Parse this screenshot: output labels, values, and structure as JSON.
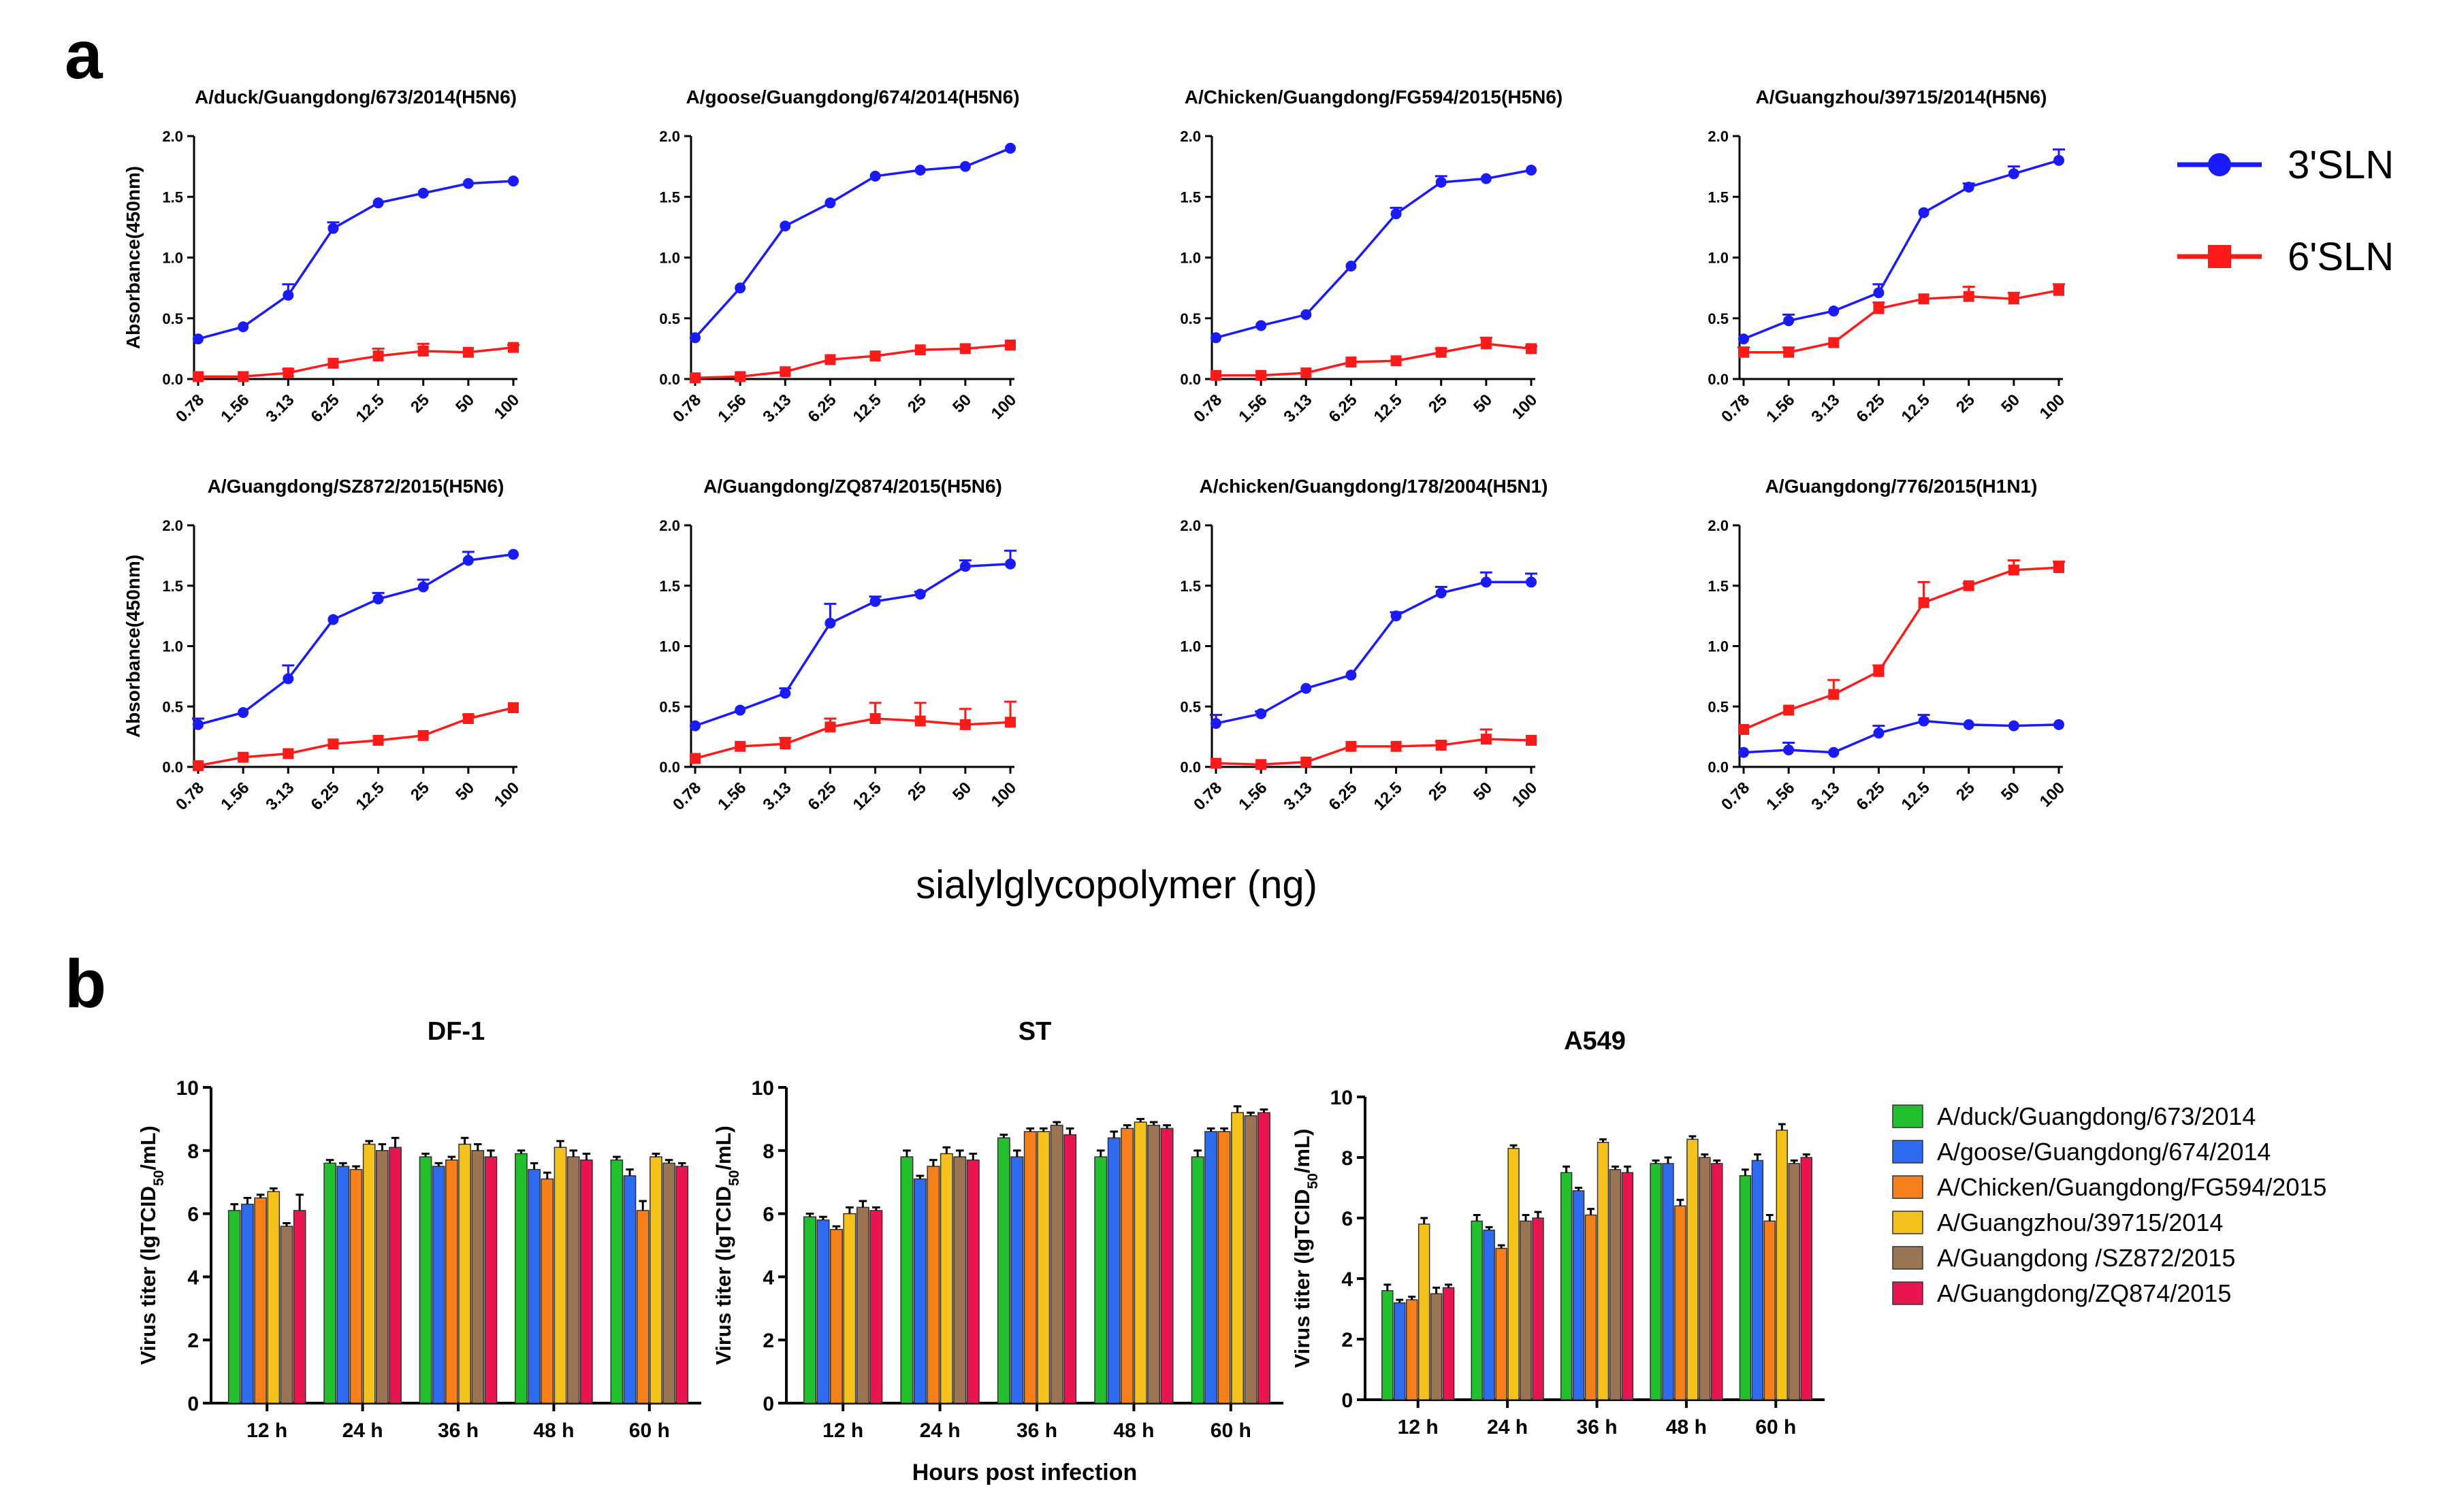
{
  "panel_a_label": "a",
  "panel_b_label": "b",
  "legend_a": [
    {
      "name": "3'SLN",
      "color": "#1a1aff"
    },
    {
      "name": "6'SLN",
      "color": "#ff1a1a"
    }
  ],
  "legend_b": [
    {
      "name": "A/duck/Guangdong/673/2014",
      "color": "#22c02c"
    },
    {
      "name": "A/goose/Guangdong/674/2014",
      "color": "#2d6cf0"
    },
    {
      "name": "A/Chicken/Guangdong/FG594/2015",
      "color": "#f57f18"
    },
    {
      "name": "A/Guangzhou/39715/2014",
      "color": "#f5c21b"
    },
    {
      "name": "A/Guangdong /SZ872/2015",
      "color": "#9b7553"
    },
    {
      "name": "A/Guangdong/ZQ874/2015",
      "color": "#e8154f"
    }
  ],
  "panel_a_xlabel": "sialylglycopolymer (ng)",
  "panel_b_xlabel": "Hours post infection",
  "chart_data": [
    {
      "type": "line",
      "title": "A/duck/Guangdong/673/2014(H5N6)",
      "ylabel": "Absorbance(450nm)",
      "categories": [
        "0.78",
        "1.56",
        "3.13",
        "6.25",
        "12.5",
        "25",
        "50",
        "100"
      ],
      "ylim": [
        0,
        2
      ],
      "yticks": [
        "0.0",
        "0.5",
        "1.0",
        "1.5",
        "2.0"
      ],
      "series": [
        {
          "name": "3'SLN",
          "values": [
            0.33,
            0.43,
            0.69,
            1.24,
            1.45,
            1.53,
            1.61,
            1.63
          ],
          "errors": [
            0.01,
            0.01,
            0.09,
            0.05,
            0.01,
            0.01,
            0.01,
            0.01
          ]
        },
        {
          "name": "6'SLN",
          "values": [
            0.02,
            0.02,
            0.05,
            0.13,
            0.19,
            0.23,
            0.22,
            0.26
          ],
          "errors": [
            0.01,
            0.01,
            0.03,
            0.01,
            0.06,
            0.06,
            0.01,
            0.02
          ]
        }
      ]
    },
    {
      "type": "line",
      "title": "A/goose/Guangdong/674/2014(H5N6)",
      "ylabel": "",
      "categories": [
        "0.78",
        "1.56",
        "3.13",
        "6.25",
        "12.5",
        "25",
        "50",
        "100"
      ],
      "ylim": [
        0,
        2
      ],
      "yticks": [
        "0.0",
        "0.5",
        "1.0",
        "1.5",
        "2.0"
      ],
      "series": [
        {
          "name": "3'SLN",
          "values": [
            0.34,
            0.75,
            1.26,
            1.45,
            1.67,
            1.72,
            1.75,
            1.9
          ],
          "errors": [
            0.01,
            0.01,
            0.01,
            0.01,
            0.01,
            0.01,
            0.01,
            0.01
          ]
        },
        {
          "name": "6'SLN",
          "values": [
            0.01,
            0.02,
            0.06,
            0.16,
            0.19,
            0.24,
            0.25,
            0.28
          ],
          "errors": [
            0.01,
            0.01,
            0.01,
            0.01,
            0.01,
            0.01,
            0.01,
            0.01
          ]
        }
      ]
    },
    {
      "type": "line",
      "title": "A/Chicken/Guangdong/FG594/2015(H5N6)",
      "ylabel": "",
      "categories": [
        "0.78",
        "1.56",
        "3.13",
        "6.25",
        "12.5",
        "25",
        "50",
        "100"
      ],
      "ylim": [
        0,
        2
      ],
      "yticks": [
        "0.0",
        "0.5",
        "1.0",
        "1.5",
        "2.0"
      ],
      "series": [
        {
          "name": "3'SLN",
          "values": [
            0.34,
            0.44,
            0.53,
            0.93,
            1.36,
            1.62,
            1.65,
            1.72
          ],
          "errors": [
            0.01,
            0.01,
            0.01,
            0.01,
            0.05,
            0.05,
            0.01,
            0.01
          ]
        },
        {
          "name": "6'SLN",
          "values": [
            0.03,
            0.03,
            0.05,
            0.14,
            0.15,
            0.22,
            0.29,
            0.25
          ],
          "errors": [
            0.01,
            0.01,
            0.01,
            0.01,
            0.01,
            0.03,
            0.05,
            0.02
          ]
        }
      ]
    },
    {
      "type": "line",
      "title": "A/Guangzhou/39715/2014(H5N6)",
      "ylabel": "",
      "categories": [
        "0.78",
        "1.56",
        "3.13",
        "6.25",
        "12.5",
        "25",
        "50",
        "100"
      ],
      "ylim": [
        0,
        2
      ],
      "yticks": [
        "0.0",
        "0.5",
        "1.0",
        "1.5",
        "2.0"
      ],
      "series": [
        {
          "name": "3'SLN",
          "values": [
            0.33,
            0.48,
            0.56,
            0.71,
            1.37,
            1.58,
            1.69,
            1.8
          ],
          "errors": [
            0.01,
            0.05,
            0.01,
            0.07,
            0.01,
            0.03,
            0.06,
            0.09
          ]
        },
        {
          "name": "6'SLN",
          "values": [
            0.22,
            0.22,
            0.3,
            0.58,
            0.66,
            0.68,
            0.66,
            0.73
          ],
          "errors": [
            0.04,
            0.04,
            0.01,
            0.05,
            0.01,
            0.08,
            0.05,
            0.05
          ]
        }
      ]
    },
    {
      "type": "line",
      "title": "A/Guangdong/SZ872/2015(H5N6)",
      "ylabel": "Absorbance(450nm)",
      "categories": [
        "0.78",
        "1.56",
        "3.13",
        "6.25",
        "12.5",
        "25",
        "50",
        "100"
      ],
      "ylim": [
        0,
        2
      ],
      "yticks": [
        "0.0",
        "0.5",
        "1.0",
        "1.5",
        "2.0"
      ],
      "series": [
        {
          "name": "3'SLN",
          "values": [
            0.35,
            0.45,
            0.73,
            1.22,
            1.39,
            1.49,
            1.71,
            1.76
          ],
          "errors": [
            0.05,
            0.01,
            0.11,
            0.01,
            0.05,
            0.06,
            0.07,
            0.01
          ]
        },
        {
          "name": "6'SLN",
          "values": [
            0.01,
            0.08,
            0.11,
            0.19,
            0.22,
            0.26,
            0.4,
            0.49
          ],
          "errors": [
            0.01,
            0.01,
            0.01,
            0.01,
            0.01,
            0.01,
            0.03,
            0.01
          ]
        }
      ]
    },
    {
      "type": "line",
      "title": "A/Guangdong/ZQ874/2015(H5N6)",
      "ylabel": "",
      "categories": [
        "0.78",
        "1.56",
        "3.13",
        "6.25",
        "12.5",
        "25",
        "50",
        "100"
      ],
      "ylim": [
        0,
        2
      ],
      "yticks": [
        "0.0",
        "0.5",
        "1.0",
        "1.5",
        "2.0"
      ],
      "series": [
        {
          "name": "3'SLN",
          "values": [
            0.34,
            0.47,
            0.61,
            1.19,
            1.37,
            1.43,
            1.66,
            1.68
          ],
          "errors": [
            0.01,
            0.01,
            0.04,
            0.16,
            0.04,
            0.02,
            0.05,
            0.11
          ]
        },
        {
          "name": "6'SLN",
          "values": [
            0.07,
            0.17,
            0.19,
            0.33,
            0.4,
            0.38,
            0.35,
            0.37
          ],
          "errors": [
            0.01,
            0.01,
            0.05,
            0.07,
            0.13,
            0.15,
            0.13,
            0.17
          ]
        }
      ]
    },
    {
      "type": "line",
      "title": "A/chicken/Guangdong/178/2004(H5N1)",
      "ylabel": "",
      "categories": [
        "0.78",
        "1.56",
        "3.13",
        "6.25",
        "12.5",
        "25",
        "50",
        "100"
      ],
      "ylim": [
        0,
        2
      ],
      "yticks": [
        "0.0",
        "0.5",
        "1.0",
        "1.5",
        "2.0"
      ],
      "series": [
        {
          "name": "3'SLN",
          "values": [
            0.36,
            0.44,
            0.65,
            0.76,
            1.25,
            1.44,
            1.53,
            1.53
          ],
          "errors": [
            0.07,
            0.02,
            0.01,
            0.01,
            0.03,
            0.05,
            0.08,
            0.07
          ]
        },
        {
          "name": "6'SLN",
          "values": [
            0.03,
            0.02,
            0.04,
            0.17,
            0.17,
            0.18,
            0.23,
            0.22
          ],
          "errors": [
            0.01,
            0.01,
            0.01,
            0.01,
            0.01,
            0.03,
            0.08,
            0.01
          ]
        }
      ]
    },
    {
      "type": "line",
      "title": "A/Guangdong/776/2015(H1N1)",
      "ylabel": "",
      "categories": [
        "0.78",
        "1.56",
        "3.13",
        "6.25",
        "12.5",
        "25",
        "50",
        "100"
      ],
      "ylim": [
        0,
        2
      ],
      "yticks": [
        "0.0",
        "0.5",
        "1.0",
        "1.5",
        "2.0"
      ],
      "series": [
        {
          "name": "3'SLN",
          "values": [
            0.12,
            0.14,
            0.12,
            0.28,
            0.38,
            0.35,
            0.34,
            0.35
          ],
          "errors": [
            0.01,
            0.06,
            0.01,
            0.06,
            0.05,
            0.01,
            0.01,
            0.01
          ]
        },
        {
          "name": "6'SLN",
          "values": [
            0.31,
            0.47,
            0.6,
            0.79,
            1.36,
            1.5,
            1.63,
            1.65
          ],
          "errors": [
            0.01,
            0.01,
            0.12,
            0.05,
            0.17,
            0.02,
            0.08,
            0.05
          ]
        }
      ]
    },
    {
      "type": "bar",
      "title": "DF-1",
      "ylabel": "Virus titer (lgTCID50/mL)",
      "categories": [
        "12 h",
        "24 h",
        "36 h",
        "48 h",
        "60 h"
      ],
      "ylim": [
        0,
        10
      ],
      "yticks": [
        "0",
        "2",
        "4",
        "6",
        "8",
        "10"
      ],
      "series": [
        {
          "name": "A/duck/Guangdong/673/2014",
          "values": [
            6.1,
            7.6,
            7.8,
            7.9,
            7.7
          ],
          "errors": [
            0.2,
            0.1,
            0.1,
            0.1,
            0.1
          ]
        },
        {
          "name": "A/goose/Guangdong/674/2014",
          "values": [
            6.3,
            7.5,
            7.5,
            7.4,
            7.2
          ],
          "errors": [
            0.2,
            0.1,
            0.1,
            0.2,
            0.2
          ]
        },
        {
          "name": "A/Chicken/Guangdong/FG594/2015",
          "values": [
            6.5,
            7.4,
            7.7,
            7.1,
            6.1
          ],
          "errors": [
            0.1,
            0.1,
            0.1,
            0.2,
            0.3
          ]
        },
        {
          "name": "A/Guangzhou/39715/2014",
          "values": [
            6.7,
            8.2,
            8.2,
            8.1,
            7.8
          ],
          "errors": [
            0.1,
            0.1,
            0.2,
            0.2,
            0.1
          ]
        },
        {
          "name": "A/Guangdong /SZ872/2015",
          "values": [
            5.6,
            8.0,
            8.0,
            7.8,
            7.6
          ],
          "errors": [
            0.1,
            0.2,
            0.2,
            0.2,
            0.1
          ]
        },
        {
          "name": "A/Guangdong/ZQ874/2015",
          "values": [
            6.1,
            8.1,
            7.8,
            7.7,
            7.5
          ],
          "errors": [
            0.5,
            0.3,
            0.2,
            0.2,
            0.1
          ]
        }
      ]
    },
    {
      "type": "bar",
      "title": "ST",
      "ylabel": "Virus titer (lgTCID50/mL)",
      "categories": [
        "12 h",
        "24 h",
        "36 h",
        "48 h",
        "60 h"
      ],
      "ylim": [
        0,
        10
      ],
      "yticks": [
        "0",
        "2",
        "4",
        "6",
        "8",
        "10"
      ],
      "series": [
        {
          "name": "A/duck/Guangdong/673/2014",
          "values": [
            5.9,
            7.8,
            8.4,
            7.8,
            7.8
          ],
          "errors": [
            0.1,
            0.2,
            0.1,
            0.2,
            0.2
          ]
        },
        {
          "name": "A/goose/Guangdong/674/2014",
          "values": [
            5.8,
            7.1,
            7.8,
            8.4,
            8.6
          ],
          "errors": [
            0.1,
            0.1,
            0.2,
            0.2,
            0.1
          ]
        },
        {
          "name": "A/Chicken/Guangdong/FG594/2015",
          "values": [
            5.5,
            7.5,
            8.6,
            8.7,
            8.6
          ],
          "errors": [
            0.1,
            0.2,
            0.1,
            0.1,
            0.1
          ]
        },
        {
          "name": "A/Guangzhou/39715/2014",
          "values": [
            6.0,
            7.9,
            8.6,
            8.9,
            9.2
          ],
          "errors": [
            0.2,
            0.2,
            0.1,
            0.1,
            0.2
          ]
        },
        {
          "name": "A/Guangdong /SZ872/2015",
          "values": [
            6.2,
            7.8,
            8.8,
            8.8,
            9.1
          ],
          "errors": [
            0.2,
            0.2,
            0.1,
            0.1,
            0.1
          ]
        },
        {
          "name": "A/Guangdong/ZQ874/2015",
          "values": [
            6.1,
            7.7,
            8.5,
            8.7,
            9.2
          ],
          "errors": [
            0.1,
            0.2,
            0.2,
            0.1,
            0.1
          ]
        }
      ]
    },
    {
      "type": "bar",
      "title": "A549",
      "ylabel": "Virus titer (lgTCID50/mL)",
      "categories": [
        "12 h",
        "24 h",
        "36 h",
        "48 h",
        "60 h"
      ],
      "ylim": [
        0,
        10
      ],
      "yticks": [
        "0",
        "2",
        "4",
        "6",
        "8",
        "10"
      ],
      "series": [
        {
          "name": "A/duck/Guangdong/673/2014",
          "values": [
            3.6,
            5.9,
            7.5,
            7.8,
            7.4
          ],
          "errors": [
            0.2,
            0.2,
            0.2,
            0.1,
            0.2
          ]
        },
        {
          "name": "A/goose/Guangdong/674/2014",
          "values": [
            3.2,
            5.6,
            6.9,
            7.8,
            7.9
          ],
          "errors": [
            0.1,
            0.1,
            0.1,
            0.2,
            0.2
          ]
        },
        {
          "name": "A/Chicken/Guangdong/FG594/2015",
          "values": [
            3.3,
            5.0,
            6.1,
            6.4,
            5.9
          ],
          "errors": [
            0.1,
            0.1,
            0.2,
            0.2,
            0.2
          ]
        },
        {
          "name": "A/Guangzhou/39715/2014",
          "values": [
            5.8,
            8.3,
            8.5,
            8.6,
            8.9
          ],
          "errors": [
            0.2,
            0.1,
            0.1,
            0.1,
            0.2
          ]
        },
        {
          "name": "A/Guangdong /SZ872/2015",
          "values": [
            3.5,
            5.9,
            7.6,
            8.0,
            7.8
          ],
          "errors": [
            0.2,
            0.2,
            0.1,
            0.1,
            0.1
          ]
        },
        {
          "name": "A/Guangdong/ZQ874/2015",
          "values": [
            3.7,
            6.0,
            7.5,
            7.8,
            8.0
          ],
          "errors": [
            0.1,
            0.2,
            0.2,
            0.1,
            0.1
          ]
        }
      ]
    }
  ]
}
